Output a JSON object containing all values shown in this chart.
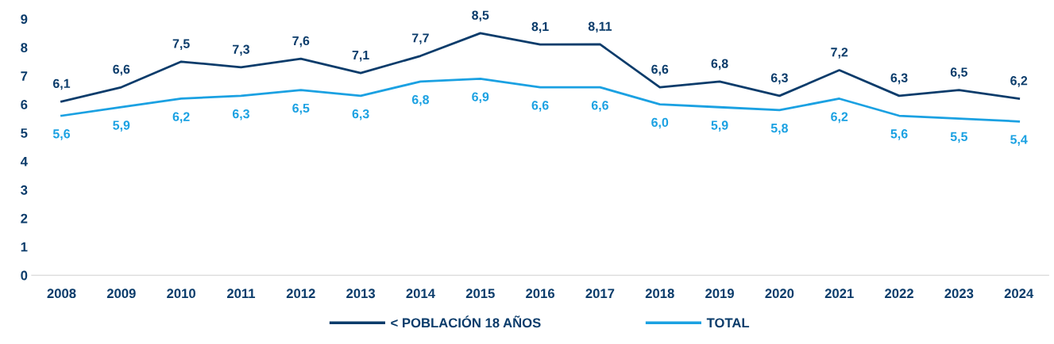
{
  "chart_data": {
    "type": "line",
    "categories": [
      "2008",
      "2009",
      "2010",
      "2011",
      "2012",
      "2013",
      "2014",
      "2015",
      "2016",
      "2017",
      "2018",
      "2019",
      "2020",
      "2021",
      "2022",
      "2023",
      "2024"
    ],
    "series": [
      {
        "name": "< POBLACIÓN 18 AÑOS",
        "color": "#0b3c6b",
        "values": [
          6.1,
          6.6,
          7.5,
          7.3,
          7.6,
          7.1,
          7.7,
          8.5,
          8.1,
          8.11,
          6.6,
          6.8,
          6.3,
          7.2,
          6.3,
          6.5,
          6.2
        ],
        "value_labels": [
          "6,1",
          "6,6",
          "7,5",
          "7,3",
          "7,6",
          "7,1",
          "7,7",
          "8,5",
          "8,1",
          "8,11",
          "6,6",
          "6,8",
          "6,3",
          "7,2",
          "6,3",
          "6,5",
          "6,2"
        ]
      },
      {
        "name": "TOTAL",
        "color": "#1ba1e2",
        "values": [
          5.6,
          5.9,
          6.2,
          6.3,
          6.5,
          6.3,
          6.8,
          6.9,
          6.6,
          6.6,
          6.0,
          5.9,
          5.8,
          6.2,
          5.6,
          5.5,
          5.4
        ],
        "value_labels": [
          "5,6",
          "5,9",
          "6,2",
          "6,3",
          "6,5",
          "6,3",
          "6,8",
          "6,9",
          "6,6",
          "6,6",
          "6,0",
          "5,9",
          "5,8",
          "6,2",
          "5,6",
          "5,5",
          "5,4"
        ]
      }
    ],
    "ylim": [
      0,
      9
    ],
    "yticks": [
      0,
      1,
      2,
      3,
      4,
      5,
      6,
      7,
      8,
      9
    ],
    "grid": false,
    "legend": "bottom",
    "marker": "none",
    "line_style": "solid"
  }
}
